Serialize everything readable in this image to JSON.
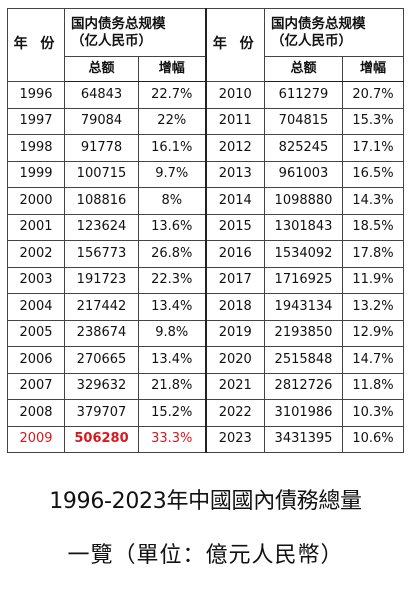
{
  "table": {
    "year_header": "年 份",
    "group_header_line1": "国内债务总规模",
    "group_header_line2": "（亿人民币）",
    "total_header": "总额",
    "growth_header": "增幅",
    "left_rows": [
      {
        "year": "1996",
        "total": "64843",
        "growth": "22.7%"
      },
      {
        "year": "1997",
        "total": "79084",
        "growth": "22%"
      },
      {
        "year": "1998",
        "total": "91778",
        "growth": "16.1%"
      },
      {
        "year": "1999",
        "total": "100715",
        "growth": "9.7%"
      },
      {
        "year": "2000",
        "total": "108816",
        "growth": "8%"
      },
      {
        "year": "2001",
        "total": "123624",
        "growth": "13.6%"
      },
      {
        "year": "2002",
        "total": "156773",
        "growth": "26.8%"
      },
      {
        "year": "2003",
        "total": "191723",
        "growth": "22.3%"
      },
      {
        "year": "2004",
        "total": "217442",
        "growth": "13.4%"
      },
      {
        "year": "2005",
        "total": "238674",
        "growth": "9.8%"
      },
      {
        "year": "2006",
        "total": "270665",
        "growth": "13.4%"
      },
      {
        "year": "2007",
        "total": "329632",
        "growth": "21.8%"
      },
      {
        "year": "2008",
        "total": "379707",
        "growth": "15.2%"
      },
      {
        "year": "2009",
        "total": "506280",
        "growth": "33.3%"
      }
    ],
    "right_rows": [
      {
        "year": "2010",
        "total": "611279",
        "growth": "20.7%"
      },
      {
        "year": "2011",
        "total": "704815",
        "growth": "15.3%"
      },
      {
        "year": "2012",
        "total": "825245",
        "growth": "17.1%"
      },
      {
        "year": "2013",
        "total": "961003",
        "growth": "16.5%"
      },
      {
        "year": "2014",
        "total": "1098880",
        "growth": "14.3%"
      },
      {
        "year": "2015",
        "total": "1301843",
        "growth": "18.5%"
      },
      {
        "year": "2016",
        "total": "1534092",
        "growth": "17.8%"
      },
      {
        "year": "2017",
        "total": "1716925",
        "growth": "11.9%"
      },
      {
        "year": "2018",
        "total": "1943134",
        "growth": "13.2%"
      },
      {
        "year": "2019",
        "total": "2193850",
        "growth": "12.9%"
      },
      {
        "year": "2020",
        "total": "2515848",
        "growth": "14.7%"
      },
      {
        "year": "2021",
        "total": "2812726",
        "growth": "11.8%"
      },
      {
        "year": "2022",
        "total": "3101986",
        "growth": "10.3%"
      },
      {
        "year": "2023",
        "total": "3431395",
        "growth": "10.6%"
      }
    ],
    "highlight_color": "#d7191f",
    "highlight_year": "2009"
  },
  "caption": {
    "line1": "1996-2023年中國國內債務總量",
    "line2": "一覽（單位：億元人民幣）"
  }
}
